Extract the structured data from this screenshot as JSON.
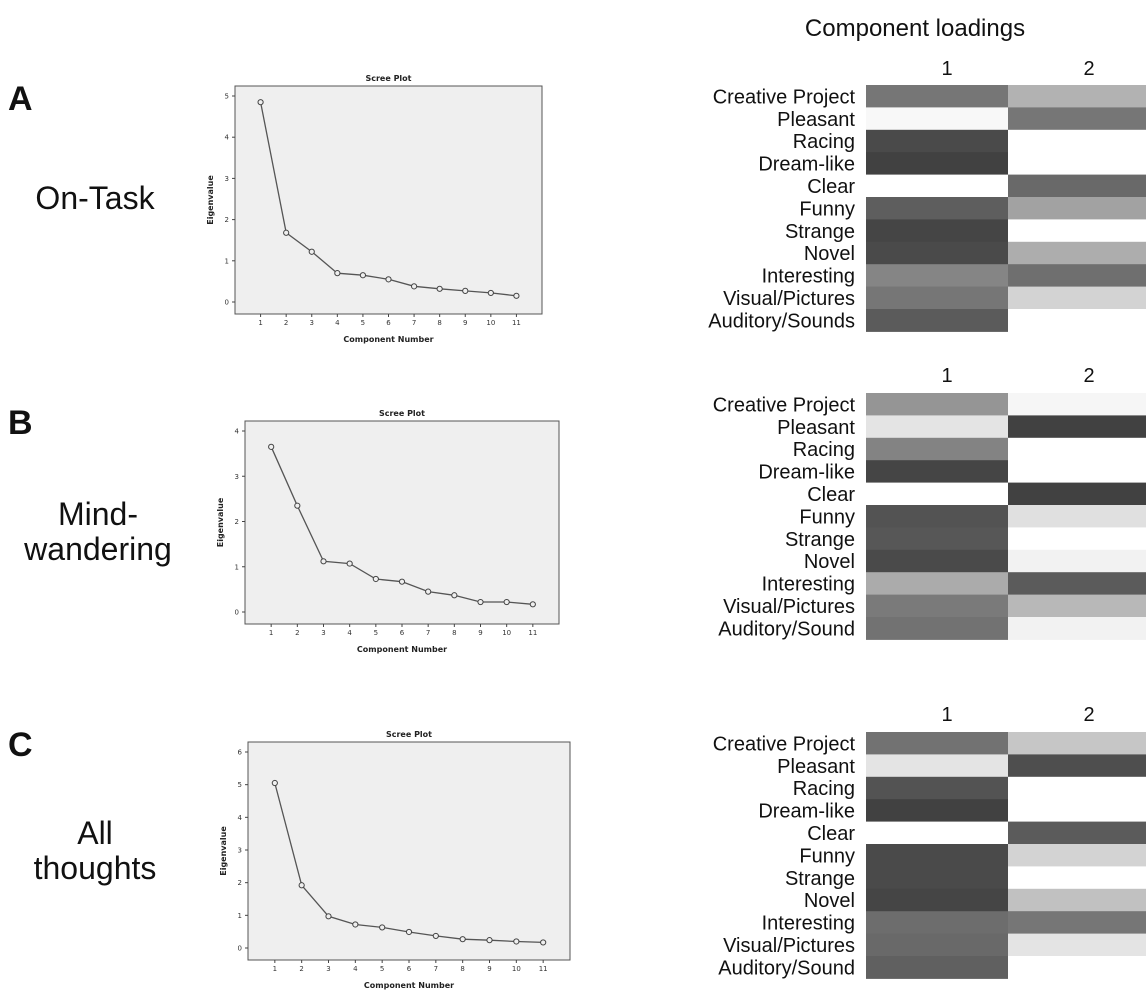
{
  "header": {
    "loadings_title": "Component loadings"
  },
  "panels": [
    {
      "letter": "A",
      "condition_lines": [
        "On-Task"
      ]
    },
    {
      "letter": "B",
      "condition_lines": [
        "Mind-",
        "wandering"
      ]
    },
    {
      "letter": "C",
      "condition_lines": [
        "All",
        "thoughts"
      ]
    }
  ],
  "chart_data": [
    {
      "type": "line",
      "title": "Scree Plot",
      "xlabel": "Component Number",
      "ylabel": "Eigenvalue",
      "x": [
        1,
        2,
        3,
        4,
        5,
        6,
        7,
        8,
        9,
        10,
        11
      ],
      "series": [
        {
          "values": [
            4.85,
            1.68,
            1.22,
            0.7,
            0.65,
            0.55,
            0.38,
            0.32,
            0.27,
            0.22,
            0.15
          ]
        }
      ],
      "ylim": [
        0,
        5
      ],
      "yticks": [
        0,
        1,
        2,
        3,
        4,
        5
      ],
      "grid": false
    },
    {
      "type": "heatmap",
      "columns": [
        "1",
        "2"
      ],
      "rows": [
        "Creative Project",
        "Pleasant",
        "Racing",
        "Dream-like",
        "Clear",
        "Funny",
        "Strange",
        "Novel",
        "Interesting",
        "Visual/Pictures",
        "Auditory/Sounds"
      ],
      "shade": [
        [
          0.62,
          0.35
        ],
        [
          0.03,
          0.62
        ],
        [
          0.82,
          0.0
        ],
        [
          0.86,
          0.0
        ],
        [
          0.0,
          0.68
        ],
        [
          0.73,
          0.42
        ],
        [
          0.84,
          0.0
        ],
        [
          0.82,
          0.37
        ],
        [
          0.55,
          0.65
        ],
        [
          0.62,
          0.2
        ],
        [
          0.74,
          0.0
        ]
      ],
      "color_scale": [
        "#ffffff",
        "#222222"
      ]
    },
    {
      "type": "line",
      "title": "Scree Plot",
      "xlabel": "Component Number",
      "ylabel": "Eigenvalue",
      "x": [
        1,
        2,
        3,
        4,
        5,
        6,
        7,
        8,
        9,
        10,
        11
      ],
      "series": [
        {
          "values": [
            3.65,
            2.35,
            1.12,
            1.07,
            0.73,
            0.67,
            0.45,
            0.37,
            0.22,
            0.22,
            0.17
          ]
        }
      ],
      "ylim": [
        0,
        4
      ],
      "yticks": [
        0,
        1,
        2,
        3,
        4
      ],
      "grid": false
    },
    {
      "type": "heatmap",
      "columns": [
        "1",
        "2"
      ],
      "rows": [
        "Creative Project",
        "Pleasant",
        "Racing",
        "Dream-like",
        "Clear",
        "Funny",
        "Strange",
        "Novel",
        "Interesting",
        "Visual/Pictures",
        "Auditory/Sound"
      ],
      "shade": [
        [
          0.48,
          0.04
        ],
        [
          0.12,
          0.86
        ],
        [
          0.56,
          0.0
        ],
        [
          0.84,
          0.0
        ],
        [
          0.0,
          0.86
        ],
        [
          0.78,
          0.14
        ],
        [
          0.76,
          0.0
        ],
        [
          0.82,
          0.06
        ],
        [
          0.38,
          0.74
        ],
        [
          0.6,
          0.32
        ],
        [
          0.64,
          0.06
        ]
      ],
      "color_scale": [
        "#ffffff",
        "#222222"
      ]
    },
    {
      "type": "line",
      "title": "Scree Plot",
      "xlabel": "Component Number",
      "ylabel": "Eigenvalue",
      "x": [
        1,
        2,
        3,
        4,
        5,
        6,
        7,
        8,
        9,
        10,
        11
      ],
      "series": [
        {
          "values": [
            5.05,
            1.92,
            0.97,
            0.72,
            0.63,
            0.49,
            0.37,
            0.27,
            0.24,
            0.2,
            0.17
          ]
        }
      ],
      "ylim": [
        0,
        6
      ],
      "yticks": [
        0,
        1,
        2,
        3,
        4,
        5,
        6
      ],
      "grid": false
    },
    {
      "type": "heatmap",
      "columns": [
        "1",
        "2"
      ],
      "rows": [
        "Creative Project",
        "Pleasant",
        "Racing",
        "Dream-like",
        "Clear",
        "Funny",
        "Strange",
        "Novel",
        "Interesting",
        "Visual/Pictures",
        "Auditory/Sound"
      ],
      "shade": [
        [
          0.64,
          0.26
        ],
        [
          0.12,
          0.8
        ],
        [
          0.78,
          0.0
        ],
        [
          0.86,
          0.0
        ],
        [
          0.0,
          0.74
        ],
        [
          0.82,
          0.2
        ],
        [
          0.82,
          0.0
        ],
        [
          0.84,
          0.28
        ],
        [
          0.66,
          0.62
        ],
        [
          0.68,
          0.12
        ],
        [
          0.72,
          0.0
        ]
      ],
      "color_scale": [
        "#ffffff",
        "#222222"
      ]
    }
  ]
}
